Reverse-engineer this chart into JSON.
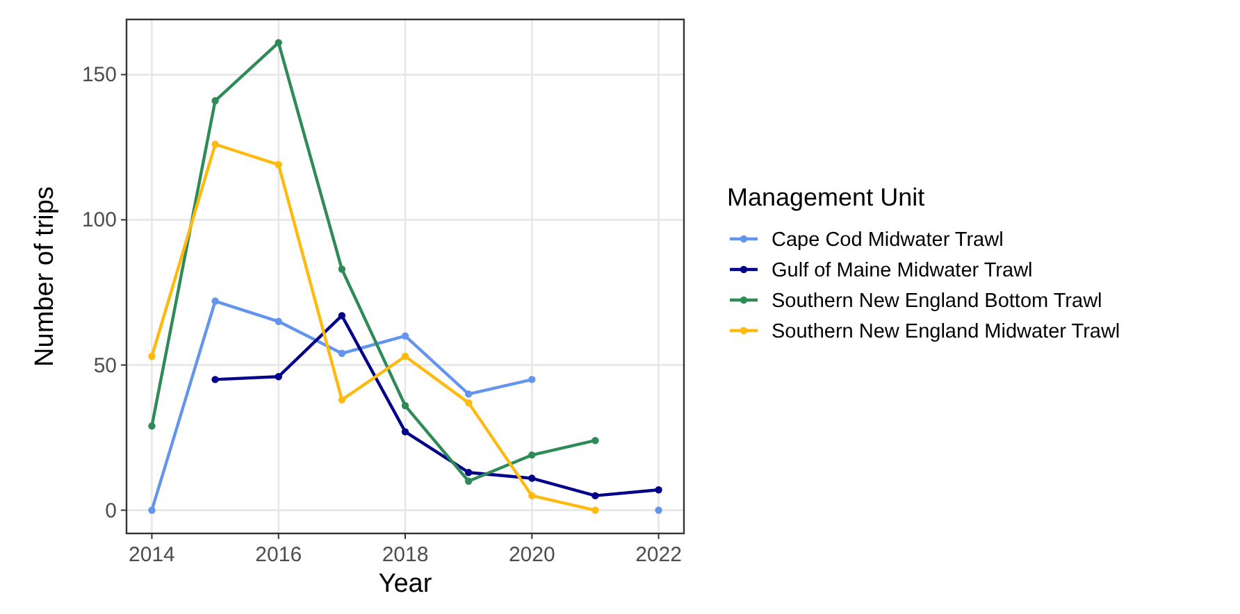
{
  "chart_data": {
    "type": "line",
    "xlabel": "Year",
    "ylabel": "Number of trips",
    "legend_title": "Management Unit",
    "legend": "right",
    "grid": true,
    "marker": "circle",
    "line_style": "solid",
    "xlim": [
      2013.6,
      2022.4
    ],
    "xticks": [
      2014,
      2016,
      2018,
      2020,
      2022
    ],
    "ylim": [
      -8,
      169
    ],
    "yticks": [
      0,
      50,
      100,
      150
    ],
    "series": [
      {
        "name": "Cape Cod Midwater Trawl",
        "color": "#6495ed",
        "x": [
          2014,
          2015,
          2016,
          2017,
          2018,
          2019,
          2020,
          2021,
          2022
        ],
        "values": [
          0,
          72,
          65,
          54,
          60,
          40,
          45,
          null,
          0
        ]
      },
      {
        "name": "Gulf of Maine Midwater Trawl",
        "color": "#00008b",
        "x": [
          2015,
          2016,
          2017,
          2018,
          2019,
          2020,
          2021,
          2022
        ],
        "values": [
          45,
          46,
          67,
          27,
          13,
          11,
          5,
          7
        ]
      },
      {
        "name": "Southern New England Bottom Trawl",
        "color": "#2e8b57",
        "x": [
          2014,
          2015,
          2016,
          2017,
          2018,
          2019,
          2020,
          2021
        ],
        "values": [
          29,
          141,
          161,
          83,
          36,
          10,
          19,
          24
        ]
      },
      {
        "name": "Southern New England Midwater Trawl",
        "color": "#ffb90f",
        "x": [
          2014,
          2015,
          2016,
          2017,
          2018,
          2019,
          2020,
          2021
        ],
        "values": [
          53,
          126,
          119,
          38,
          53,
          37,
          5,
          0
        ]
      }
    ]
  }
}
